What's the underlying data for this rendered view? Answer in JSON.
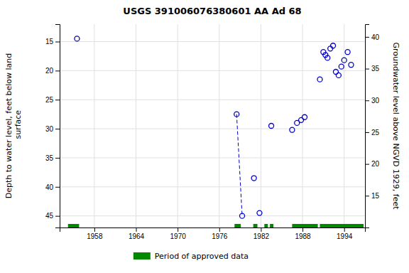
{
  "chart_data": {
    "type": "scatter",
    "title": "USGS 391006076380601 AA Ad  68",
    "ylabel": "Depth to water level, feet below land\n surface",
    "y2label": "Groundwater level above NGVD 1929, feet",
    "xlim": [
      1953,
      1997
    ],
    "ylim": [
      47,
      12
    ],
    "y2lim": [
      10,
      42
    ],
    "xticks": [
      1958,
      1964,
      1970,
      1976,
      1982,
      1988,
      1994
    ],
    "yticks": [
      15,
      20,
      25,
      30,
      35,
      40,
      45
    ],
    "y2ticks": [
      15,
      20,
      25,
      30,
      35,
      40
    ],
    "grid": true,
    "legend": "bottom",
    "series": [
      {
        "type": "scatter",
        "marker": "circle",
        "color": "#0000cc",
        "x": [
          1955.5,
          1978.5,
          1979.3,
          1981.0,
          1981.8,
          1983.5,
          1986.5,
          1987.2,
          1987.8,
          1988.3,
          1990.5,
          1991.0,
          1991.3,
          1991.6,
          1992.0,
          1992.4,
          1992.8,
          1993.2,
          1993.6,
          1994.0,
          1994.5,
          1995.0
        ],
        "values": [
          14.5,
          27.5,
          45.0,
          38.5,
          44.5,
          29.5,
          30.2,
          29.0,
          28.5,
          28.0,
          21.5,
          16.8,
          17.3,
          17.8,
          16.2,
          15.7,
          20.2,
          20.8,
          19.3,
          18.2,
          16.8,
          19.0
        ]
      },
      {
        "type": "line",
        "line_style": "dashed",
        "color": "#0000cc",
        "x": [
          1978.5,
          1979.3
        ],
        "values": [
          27.5,
          45.0
        ]
      },
      {
        "type": "span",
        "name": "Period of approved data",
        "color": "#008800",
        "periods": [
          [
            1954.2,
            1955.8
          ],
          [
            1978.2,
            1979.1
          ],
          [
            1980.9,
            1981.5
          ],
          [
            1982.5,
            1983.0
          ],
          [
            1983.3,
            1983.8
          ],
          [
            1986.5,
            1990.2
          ],
          [
            1990.5,
            1996.8
          ]
        ]
      }
    ]
  }
}
